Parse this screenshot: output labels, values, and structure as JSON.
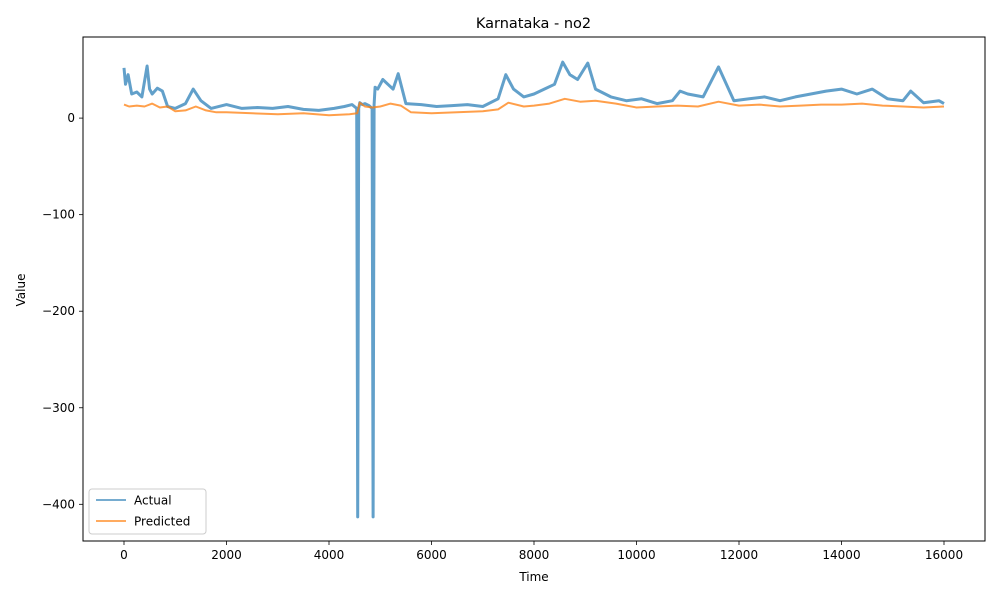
{
  "chart_data": {
    "type": "line",
    "title": "Karnataka - no2",
    "xlabel": "Time",
    "ylabel": "Value",
    "xlim": [
      -800,
      16800
    ],
    "ylim": [
      -438,
      84
    ],
    "x_ticks": [
      0,
      2000,
      4000,
      6000,
      8000,
      10000,
      12000,
      14000,
      16000
    ],
    "x_tick_labels": [
      "0",
      "2000",
      "4000",
      "6000",
      "8000",
      "10000",
      "12000",
      "14000",
      "16000"
    ],
    "y_ticks": [
      0,
      -100,
      -200,
      -300,
      -400
    ],
    "y_tick_labels": [
      "0",
      "−100",
      "−200",
      "−300",
      "−400"
    ],
    "grid": false,
    "legend_position": "lower-left",
    "series": [
      {
        "name": "Actual",
        "color": "#1f77b4",
        "opacity": 0.7,
        "x": [
          0,
          30,
          80,
          150,
          250,
          350,
          450,
          500,
          550,
          650,
          750,
          850,
          1000,
          1200,
          1350,
          1500,
          1700,
          2000,
          2300,
          2600,
          2900,
          3200,
          3500,
          3800,
          4100,
          4300,
          4450,
          4540,
          4560,
          4580,
          4600,
          4650,
          4700,
          4780,
          4840,
          4860,
          4880,
          4900,
          4950,
          5050,
          5150,
          5250,
          5350,
          5500,
          5800,
          6100,
          6400,
          6700,
          7000,
          7300,
          7450,
          7600,
          7800,
          8000,
          8200,
          8400,
          8560,
          8700,
          8850,
          9050,
          9200,
          9500,
          9800,
          10100,
          10400,
          10700,
          10850,
          11000,
          11300,
          11600,
          11900,
          12200,
          12500,
          12800,
          13100,
          13400,
          13700,
          14000,
          14300,
          14600,
          14900,
          15200,
          15350,
          15600,
          15900,
          16000
        ],
        "y": [
          52,
          35,
          45,
          25,
          27,
          22,
          54,
          30,
          25,
          31,
          28,
          12,
          10,
          15,
          30,
          18,
          10,
          14,
          10,
          11,
          10,
          12,
          9,
          8,
          10,
          12,
          14,
          10,
          -413,
          10,
          16,
          14,
          15,
          13,
          10,
          -413,
          14,
          32,
          30,
          40,
          35,
          30,
          46,
          15,
          14,
          12,
          13,
          14,
          12,
          20,
          45,
          30,
          22,
          25,
          30,
          35,
          58,
          45,
          40,
          57,
          30,
          22,
          18,
          20,
          15,
          18,
          28,
          25,
          22,
          53,
          18,
          20,
          22,
          18,
          22,
          25,
          28,
          30,
          25,
          30,
          20,
          18,
          28,
          16,
          18,
          15
        ]
      },
      {
        "name": "Predicted",
        "color": "#ff7f0e",
        "opacity": 0.75,
        "x": [
          0,
          100,
          250,
          400,
          550,
          700,
          850,
          1000,
          1200,
          1400,
          1600,
          1800,
          2000,
          2500,
          3000,
          3500,
          4000,
          4400,
          4550,
          4600,
          4700,
          4850,
          5000,
          5200,
          5400,
          5600,
          6000,
          6500,
          7000,
          7300,
          7500,
          7800,
          8000,
          8300,
          8600,
          8900,
          9200,
          9600,
          10000,
          10400,
          10800,
          11200,
          11600,
          12000,
          12400,
          12800,
          13200,
          13600,
          14000,
          14400,
          14800,
          15200,
          15600,
          16000
        ],
        "y": [
          14,
          12,
          13,
          12,
          15,
          11,
          12,
          7,
          8,
          12,
          8,
          6,
          6,
          5,
          4,
          5,
          3,
          4,
          5,
          16,
          12,
          11,
          12,
          15,
          13,
          6,
          5,
          6,
          7,
          9,
          16,
          12,
          13,
          15,
          20,
          17,
          18,
          15,
          11,
          12,
          13,
          12,
          17,
          13,
          14,
          12,
          13,
          14,
          14,
          15,
          13,
          12,
          11,
          12
        ]
      }
    ]
  }
}
